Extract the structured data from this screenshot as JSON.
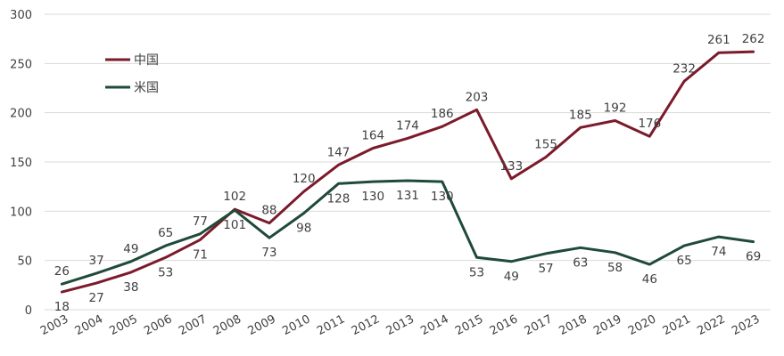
{
  "chart_data": {
    "type": "line",
    "categories": [
      "2003",
      "2004",
      "2005",
      "2006",
      "2007",
      "2008",
      "2009",
      "2010",
      "2011",
      "2012",
      "2013",
      "2014",
      "2015",
      "2016",
      "2017",
      "2018",
      "2019",
      "2020",
      "2021",
      "2022",
      "2023"
    ],
    "series": [
      {
        "name": "中国",
        "color": "#7b1a2a",
        "values": [
          18,
          27,
          38,
          53,
          71,
          102,
          88,
          120,
          147,
          164,
          174,
          186,
          203,
          133,
          155,
          185,
          192,
          176,
          232,
          261,
          262
        ]
      },
      {
        "name": "米国",
        "color": "#1f4a3a",
        "values": [
          26,
          37,
          49,
          65,
          77,
          101,
          73,
          98,
          128,
          130,
          131,
          130,
          53,
          49,
          57,
          63,
          58,
          46,
          65,
          74,
          69
        ]
      }
    ],
    "ylim": [
      0,
      300
    ],
    "yticks": [
      "0",
      "50",
      "100",
      "150",
      "200",
      "250",
      "300"
    ],
    "grid": true,
    "legend": "top-left"
  }
}
